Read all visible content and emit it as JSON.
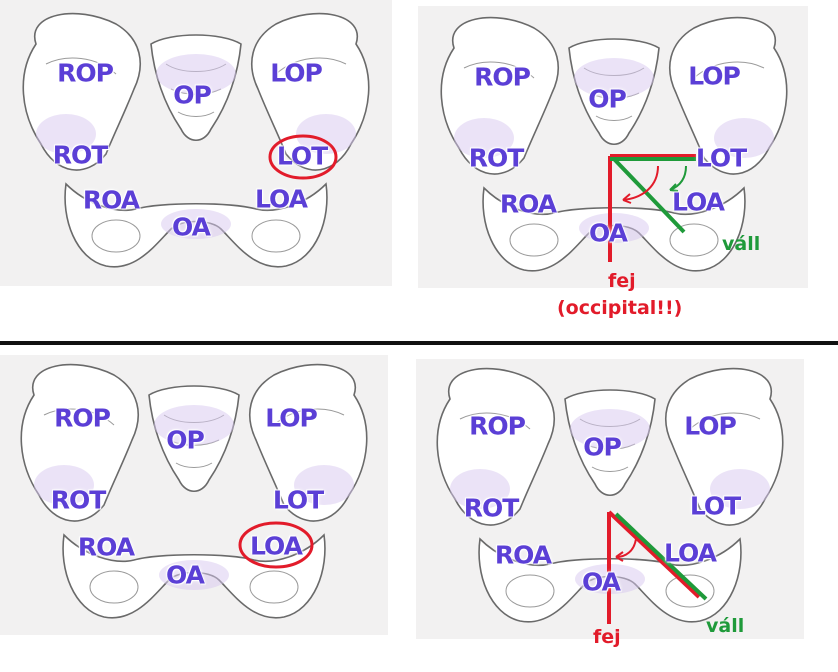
{
  "colors": {
    "label": "#5b3fd6",
    "head": "#e21b2a",
    "shoulder": "#1f9a3a",
    "divider": "#111111"
  },
  "labels": {
    "rop": "ROP",
    "lop": "LOP",
    "op": "OP",
    "rot": "ROT",
    "lot": "LOT",
    "roa": "ROA",
    "loa": "LOA",
    "oa": "OA"
  },
  "annotations": {
    "head": "fej",
    "occipital": "(occipital!!)",
    "shoulder": "váll"
  },
  "panels": [
    {
      "id": "top-left",
      "circled": "LOT"
    },
    {
      "id": "top-right",
      "head_label": "fej",
      "head_note": "(occipital!!)",
      "shoulder_label": "váll"
    },
    {
      "id": "bottom-left",
      "circled": "LOA"
    },
    {
      "id": "bottom-right",
      "head_label": "fej",
      "shoulder_label": "váll"
    }
  ]
}
